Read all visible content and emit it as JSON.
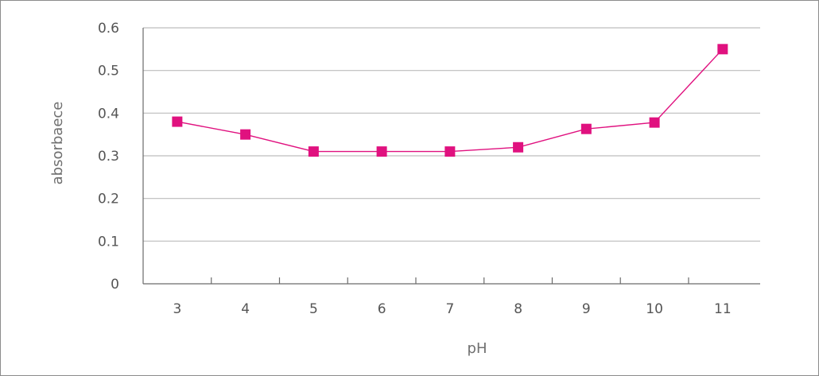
{
  "chart_data": {
    "type": "line",
    "title": "",
    "xlabel": "pH",
    "ylabel": "absorbaece",
    "categories": [
      "3",
      "4",
      "5",
      "6",
      "7",
      "8",
      "9",
      "10",
      "11"
    ],
    "series": [
      {
        "values": [
          0.38,
          0.35,
          0.31,
          0.31,
          0.31,
          0.32,
          0.363,
          0.378,
          0.55
        ],
        "color": "#e0117f",
        "marker": "square"
      }
    ],
    "ylim": [
      0,
      0.6
    ],
    "yticks": [
      0,
      0.1,
      0.2,
      0.3,
      0.4,
      0.5,
      0.6
    ],
    "ytick_labels": [
      "0",
      "0.1",
      "0.2",
      "0.3",
      "0.4",
      "0.5",
      "0.6"
    ],
    "grid": true,
    "legend": "none"
  }
}
